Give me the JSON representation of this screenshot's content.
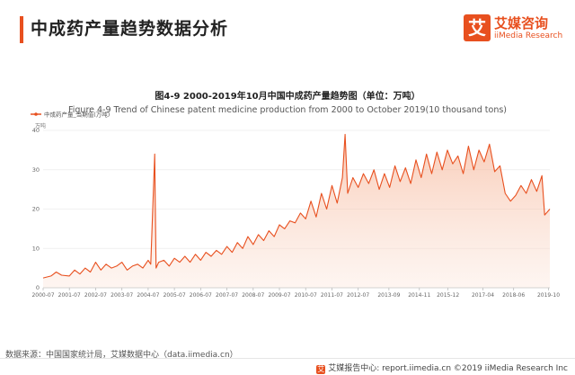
{
  "header": {
    "title": "中成药产量趋势数据分析",
    "brand_icon_char": "艾",
    "brand_name": "艾媒咨询",
    "brand_sub": "iiMedia Research",
    "accent_color": "#e8501f"
  },
  "chart_data": {
    "type": "area",
    "title": "图4-9 2000-2019年10月中国中成药产量趋势图（单位：万吨）",
    "subtitle": "Figure 4-9 Trend of Chinese patent medicine production from 2000 to October 2019(10 thousand tons)",
    "legend": {
      "label": "中成药产量_当期值(万吨)",
      "placement": "top-left"
    },
    "unit_label": "万吨",
    "ylim": [
      0,
      40
    ],
    "yticks": [
      0,
      10,
      20,
      30,
      40
    ],
    "xlim": [
      2000.5,
      2019.8
    ],
    "x_tick_labels": [
      "2000-07",
      "2001-07",
      "2002-07",
      "2003-07",
      "2004-07",
      "2005-07",
      "2006-07",
      "2007-07",
      "2008-07",
      "2009-07",
      "2010-07",
      "2011-07",
      "2012-07",
      "2013-09",
      "2014-11",
      "2015-12",
      "2017-04",
      "2018-06",
      "2019-10"
    ],
    "x_tick_positions": [
      2000.5,
      2001.5,
      2002.5,
      2003.5,
      2004.5,
      2005.5,
      2006.5,
      2007.5,
      2008.5,
      2009.5,
      2010.5,
      2011.5,
      2012.5,
      2013.67,
      2014.83,
      2015.92,
      2017.25,
      2018.42,
      2019.75
    ],
    "series": [
      {
        "name": "中成药产量_当期值(万吨)",
        "color": "#e8501f",
        "x": [
          2000.5,
          2000.8,
          2001.0,
          2001.2,
          2001.5,
          2001.7,
          2001.9,
          2002.1,
          2002.3,
          2002.5,
          2002.7,
          2002.9,
          2003.1,
          2003.3,
          2003.5,
          2003.7,
          2003.9,
          2004.1,
          2004.3,
          2004.5,
          2004.6,
          2004.75,
          2004.8,
          2004.9,
          2005.1,
          2005.3,
          2005.5,
          2005.7,
          2005.9,
          2006.1,
          2006.3,
          2006.5,
          2006.7,
          2006.9,
          2007.1,
          2007.3,
          2007.5,
          2007.7,
          2007.9,
          2008.1,
          2008.3,
          2008.5,
          2008.7,
          2008.9,
          2009.1,
          2009.3,
          2009.5,
          2009.7,
          2009.9,
          2010.1,
          2010.3,
          2010.5,
          2010.7,
          2010.9,
          2011.1,
          2011.3,
          2011.5,
          2011.7,
          2011.9,
          2012.0,
          2012.1,
          2012.3,
          2012.5,
          2012.7,
          2012.9,
          2013.1,
          2013.3,
          2013.5,
          2013.7,
          2013.9,
          2014.1,
          2014.3,
          2014.5,
          2014.7,
          2014.9,
          2015.1,
          2015.3,
          2015.5,
          2015.7,
          2015.9,
          2016.1,
          2016.3,
          2016.5,
          2016.7,
          2016.9,
          2017.1,
          2017.3,
          2017.5,
          2017.7,
          2017.9,
          2018.1,
          2018.3,
          2018.5,
          2018.7,
          2018.9,
          2019.1,
          2019.3,
          2019.5,
          2019.6,
          2019.8
        ],
        "values": [
          2.5,
          3.0,
          4.0,
          3.2,
          3.0,
          4.5,
          3.5,
          5.0,
          4.0,
          6.5,
          4.5,
          6.0,
          5.0,
          5.5,
          6.5,
          4.5,
          5.5,
          6.0,
          5.0,
          7.0,
          6.0,
          34.0,
          5.0,
          6.5,
          7.0,
          5.5,
          7.5,
          6.5,
          8.0,
          6.5,
          8.5,
          7.0,
          9.0,
          8.0,
          9.5,
          8.5,
          10.5,
          9.0,
          11.5,
          10.0,
          13.0,
          11.0,
          13.5,
          12.0,
          14.5,
          13.0,
          16.0,
          15.0,
          17.0,
          16.5,
          19.0,
          17.5,
          22.0,
          18.0,
          24.0,
          20.0,
          26.0,
          21.5,
          28.0,
          39.0,
          24.0,
          28.0,
          25.5,
          29.0,
          26.5,
          30.0,
          25.0,
          29.0,
          25.5,
          31.0,
          27.0,
          30.5,
          26.5,
          32.5,
          28.0,
          34.0,
          29.0,
          34.5,
          30.0,
          35.0,
          31.5,
          33.5,
          29.0,
          36.0,
          30.0,
          35.0,
          32.0,
          36.5,
          29.5,
          31.0,
          24.0,
          22.0,
          23.5,
          26.0,
          24.0,
          27.5,
          24.5,
          28.5,
          18.5,
          20.0
        ]
      }
    ],
    "grid": true
  },
  "source_text": "数据来源：中国国家统计局，艾媒数据中心（data.iimedia.cn）",
  "footer": {
    "icon_char": "艾",
    "text": "艾媒报告中心: report.iimedia.cn  ©2019  iiMedia Research  Inc"
  }
}
